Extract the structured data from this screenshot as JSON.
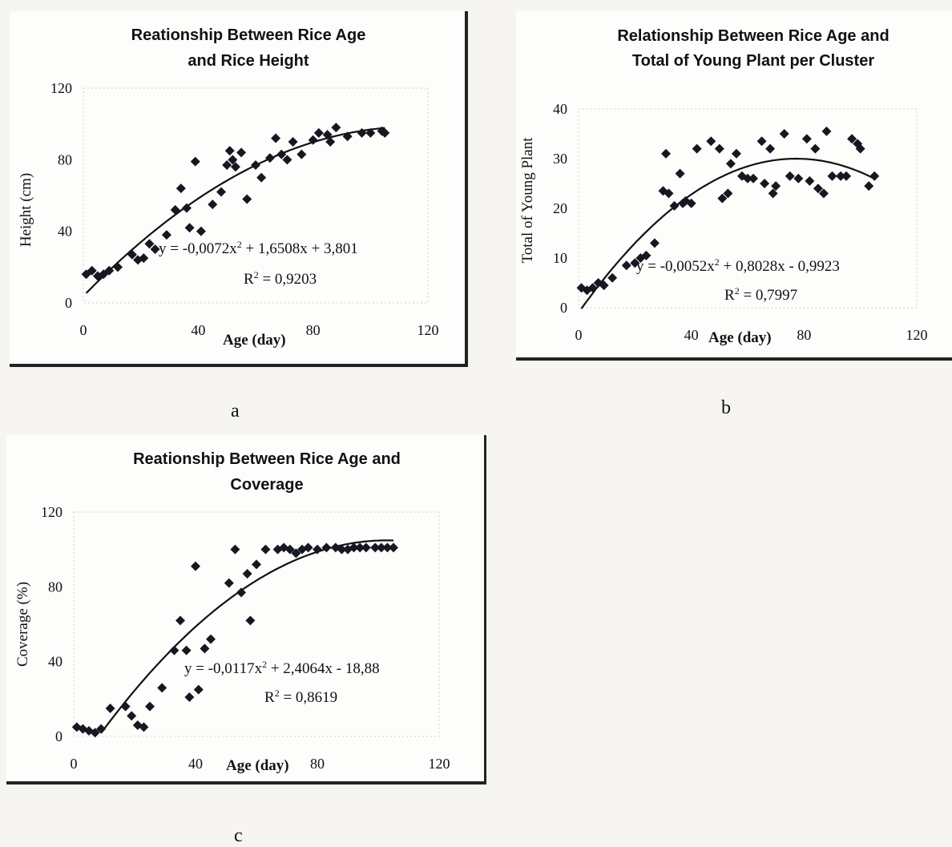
{
  "letters": [
    "a",
    "b",
    "c"
  ],
  "chart_data": [
    {
      "type": "scatter",
      "title_lines": [
        "Reationship Between Rice Age",
        "and Rice Height"
      ],
      "xlabel": "Age (day)",
      "ylabel": "Height (cm)",
      "xlim": [
        0,
        120
      ],
      "ylim": [
        0,
        120
      ],
      "xticks": [
        "0",
        "40",
        "80",
        "120"
      ],
      "yticks": [
        "0",
        "40",
        "80",
        "120"
      ],
      "equation_main": "y = -0,0072x",
      "equation_tail": " + 1,6508x + 3,801",
      "r2_value": " = 0,9203",
      "trend": {
        "a": -0.0072,
        "b": 1.6508,
        "c": 3.801,
        "x_range": [
          1,
          105
        ]
      },
      "x": [
        1,
        3,
        5,
        7,
        9,
        12,
        17,
        19,
        21,
        23,
        25,
        29,
        32,
        34,
        36,
        37,
        39,
        41,
        45,
        48,
        50,
        51,
        52,
        53,
        55,
        57,
        60,
        62,
        65,
        67,
        69,
        71,
        73,
        76,
        80,
        82,
        85,
        86,
        88,
        92,
        97,
        100,
        104,
        105
      ],
      "y": [
        16,
        18,
        15,
        16,
        18,
        20,
        27,
        24,
        25,
        33,
        30,
        38,
        52,
        64,
        53,
        42,
        79,
        40,
        55,
        62,
        77,
        85,
        80,
        76,
        84,
        58,
        77,
        70,
        81,
        92,
        83,
        80,
        90,
        83,
        91,
        95,
        94,
        90,
        98,
        93,
        95,
        95,
        96,
        95
      ]
    },
    {
      "type": "scatter",
      "title_lines": [
        "Relationship Between Rice Age and",
        "Total of  Young Plant per Cluster"
      ],
      "xlabel": "Age (day)",
      "ylabel": "Total of Young Plant",
      "xlim": [
        0,
        120
      ],
      "ylim": [
        0,
        40
      ],
      "xticks": [
        "0",
        "40",
        "80",
        "120"
      ],
      "yticks": [
        "0",
        "10",
        "20",
        "30",
        "40"
      ],
      "equation_main": "y = -0,0052x",
      "equation_tail": " + 0,8028x - 0,9923",
      "r2_value": " = 0,7997",
      "trend": {
        "a": -0.0052,
        "b": 0.8028,
        "c": -0.9923,
        "x_range": [
          1,
          105
        ]
      },
      "x": [
        1,
        3,
        5,
        7,
        9,
        12,
        17,
        20,
        22,
        24,
        27,
        30,
        31,
        32,
        34,
        36,
        37,
        38,
        40,
        42,
        47,
        50,
        51,
        53,
        54,
        56,
        58,
        60,
        62,
        65,
        66,
        68,
        69,
        70,
        73,
        75,
        78,
        81,
        82,
        84,
        85,
        87,
        88,
        90,
        93,
        95,
        97,
        99,
        100,
        103,
        105
      ],
      "y": [
        4,
        3.5,
        4,
        5,
        4.5,
        6,
        8.5,
        9,
        10,
        10.5,
        13,
        23.5,
        31,
        23,
        20.5,
        27,
        21,
        21.5,
        21,
        32,
        33.5,
        32,
        22,
        23,
        29,
        31,
        26.5,
        26,
        26,
        33.5,
        25,
        32,
        23,
        24.5,
        35,
        26.5,
        26,
        34,
        25.5,
        32,
        24,
        23,
        35.5,
        26.5,
        26.5,
        26.5,
        34,
        33,
        32,
        24.5,
        26.5
      ]
    },
    {
      "type": "scatter",
      "title_lines": [
        "Reationship Between Rice Age and",
        "Coverage"
      ],
      "xlabel": "Age (day)",
      "ylabel": "Coverage (%)",
      "xlim": [
        0,
        120
      ],
      "ylim": [
        0,
        120
      ],
      "xticks": [
        "0",
        "40",
        "80",
        "120"
      ],
      "yticks": [
        "0",
        "40",
        "80",
        "120"
      ],
      "equation_main": "y = -0,0117x",
      "equation_tail": " + 2,4064x - 18,88",
      "r2_value": " = 0,8619",
      "trend": {
        "a": -0.0117,
        "b": 2.4064,
        "c": -18.88,
        "x_range": [
          9,
          105
        ]
      },
      "x": [
        1,
        3,
        5,
        7,
        9,
        12,
        17,
        19,
        21,
        23,
        25,
        29,
        33,
        35,
        37,
        38,
        40,
        41,
        43,
        45,
        51,
        53,
        55,
        57,
        58,
        60,
        63,
        67,
        69,
        71,
        73,
        75,
        77,
        80,
        83,
        86,
        88,
        90,
        92,
        94,
        96,
        99,
        101,
        103,
        105
      ],
      "y": [
        5,
        4,
        3,
        2,
        4,
        15,
        16,
        11,
        6,
        5,
        16,
        26,
        46,
        62,
        46,
        21,
        91,
        25,
        47,
        52,
        82,
        100,
        77,
        87,
        62,
        92,
        100,
        100,
        101,
        100,
        98,
        100,
        101,
        100,
        101,
        101,
        100,
        100,
        101,
        101,
        101,
        101,
        101,
        101,
        101
      ]
    }
  ]
}
